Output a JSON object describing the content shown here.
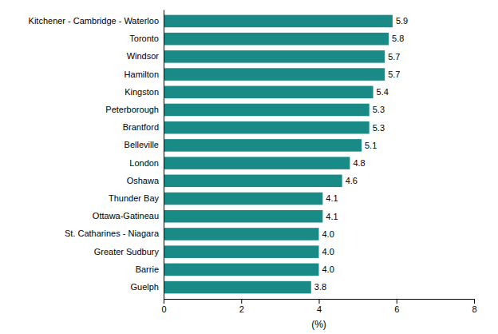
{
  "chart_data": {
    "type": "bar",
    "orientation": "horizontal",
    "categories": [
      "Guelph",
      "Barrie",
      "Greater Sudbury",
      "St. Catharines - Niagara",
      "Ottawa-Gatineau",
      "Thunder Bay",
      "Oshawa",
      "London",
      "Belleville",
      "Brantford",
      "Peterborough",
      "Kingston",
      "Hamilton",
      "Windsor",
      "Toronto",
      "Kitchener - Cambridge - Waterloo"
    ],
    "values": [
      3.8,
      4.0,
      4.0,
      4.0,
      4.1,
      4.1,
      4.6,
      4.8,
      5.1,
      5.3,
      5.3,
      5.4,
      5.7,
      5.7,
      5.8,
      5.9
    ],
    "value_labels": [
      "3.8",
      "4.0",
      "4.0",
      "4.0",
      "4.1",
      "4.1",
      "4.6",
      "4.8",
      "5.1",
      "5.3",
      "5.3",
      "5.4",
      "5.7",
      "5.7",
      "5.8",
      "5.9"
    ],
    "data_labels": true,
    "color": "#1a8a87",
    "xlabel": "(%)",
    "xlim": [
      0,
      8
    ],
    "xticks": [
      0,
      2,
      4,
      6,
      8
    ],
    "grid": false
  }
}
